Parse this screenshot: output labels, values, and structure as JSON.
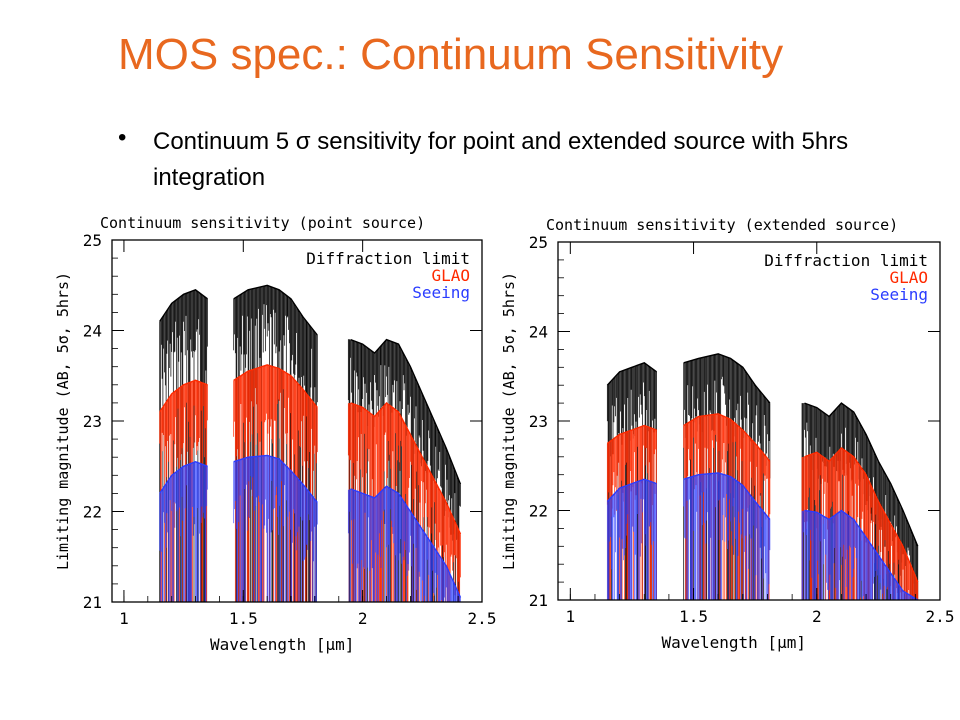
{
  "slide": {
    "title": "MOS spec.: Continuum Sensitivity",
    "bullet": "Continuum 5 σ sensitivity for point and extended source with 5hrs integration",
    "bullet_symbol": "•"
  },
  "colors": {
    "title": "#E8681F",
    "diffraction": "#000000",
    "glao": "#FF2A00",
    "seeing": "#2A3CFF"
  },
  "chart_data": [
    {
      "type": "line",
      "title": "Continuum sensitivity (point source)",
      "xlabel": "Wavelength [μm]",
      "ylabel": "Limiting magnitude (AB, 5σ, 5hrs)",
      "xlim": [
        0.95,
        2.5
      ],
      "ylim": [
        21,
        25
      ],
      "xticks": [
        "1",
        "1.5",
        "2",
        "2.5"
      ],
      "yticks": [
        "21",
        "22",
        "23",
        "24",
        "25"
      ],
      "legend_position": "top-right",
      "bands": [
        [
          1.15,
          1.35
        ],
        [
          1.46,
          1.81
        ],
        [
          1.94,
          2.41
        ]
      ],
      "series": [
        {
          "name": "Diffraction limit",
          "color": "#000000",
          "x": [
            1.15,
            1.2,
            1.25,
            1.3,
            1.35,
            1.46,
            1.52,
            1.6,
            1.65,
            1.7,
            1.75,
            1.81,
            1.95,
            2.0,
            2.05,
            2.1,
            2.15,
            2.2,
            2.25,
            2.3,
            2.35,
            2.41
          ],
          "y": [
            24.1,
            24.3,
            24.4,
            24.45,
            24.35,
            24.35,
            24.45,
            24.5,
            24.45,
            24.35,
            24.15,
            23.95,
            23.9,
            23.85,
            23.75,
            23.9,
            23.85,
            23.6,
            23.3,
            23.0,
            22.7,
            22.3
          ]
        },
        {
          "name": "GLAO",
          "color": "#FF2A00",
          "x": [
            1.15,
            1.2,
            1.25,
            1.3,
            1.35,
            1.46,
            1.52,
            1.6,
            1.65,
            1.7,
            1.75,
            1.81,
            1.95,
            2.0,
            2.05,
            2.1,
            2.15,
            2.2,
            2.25,
            2.3,
            2.35,
            2.41
          ],
          "y": [
            23.1,
            23.3,
            23.4,
            23.45,
            23.4,
            23.45,
            23.55,
            23.62,
            23.58,
            23.5,
            23.35,
            23.15,
            23.2,
            23.15,
            23.05,
            23.2,
            23.1,
            22.85,
            22.6,
            22.35,
            22.1,
            21.75
          ]
        },
        {
          "name": "Seeing",
          "color": "#2A3CFF",
          "x": [
            1.15,
            1.2,
            1.25,
            1.3,
            1.35,
            1.46,
            1.52,
            1.6,
            1.65,
            1.7,
            1.75,
            1.81,
            1.95,
            2.0,
            2.05,
            2.1,
            2.15,
            2.2,
            2.25,
            2.3,
            2.35,
            2.41
          ],
          "y": [
            22.2,
            22.4,
            22.5,
            22.55,
            22.5,
            22.55,
            22.6,
            22.62,
            22.58,
            22.45,
            22.3,
            22.1,
            22.25,
            22.2,
            22.15,
            22.28,
            22.2,
            22.0,
            21.8,
            21.6,
            21.4,
            21.05
          ]
        }
      ]
    },
    {
      "type": "line",
      "title": "Continuum sensitivity (extended source)",
      "xlabel": "Wavelength [μm]",
      "ylabel": "Limiting magnitude (AB, 5σ, 5hrs)",
      "xlim": [
        0.95,
        2.5
      ],
      "ylim": [
        21,
        25
      ],
      "xticks": [
        "1",
        "1.5",
        "2",
        "2.5"
      ],
      "yticks": [
        "21",
        "22",
        "23",
        "24",
        "25"
      ],
      "legend_position": "top-right",
      "bands": [
        [
          1.15,
          1.35
        ],
        [
          1.46,
          1.81
        ],
        [
          1.94,
          2.41
        ]
      ],
      "series": [
        {
          "name": "Diffraction limit",
          "color": "#000000",
          "x": [
            1.15,
            1.2,
            1.25,
            1.3,
            1.35,
            1.46,
            1.52,
            1.6,
            1.65,
            1.7,
            1.75,
            1.81,
            1.95,
            2.0,
            2.05,
            2.1,
            2.15,
            2.2,
            2.25,
            2.3,
            2.35,
            2.41
          ],
          "y": [
            23.4,
            23.55,
            23.6,
            23.65,
            23.55,
            23.65,
            23.7,
            23.75,
            23.7,
            23.6,
            23.4,
            23.2,
            23.2,
            23.15,
            23.05,
            23.2,
            23.1,
            22.85,
            22.55,
            22.3,
            22.0,
            21.6
          ]
        },
        {
          "name": "GLAO",
          "color": "#FF2A00",
          "x": [
            1.15,
            1.2,
            1.25,
            1.3,
            1.35,
            1.46,
            1.52,
            1.6,
            1.65,
            1.7,
            1.75,
            1.81,
            1.95,
            2.0,
            2.05,
            2.1,
            2.15,
            2.2,
            2.25,
            2.3,
            2.35,
            2.41
          ],
          "y": [
            22.75,
            22.85,
            22.9,
            22.95,
            22.9,
            22.95,
            23.05,
            23.08,
            23.02,
            22.9,
            22.75,
            22.55,
            22.6,
            22.65,
            22.55,
            22.7,
            22.6,
            22.4,
            22.1,
            21.85,
            21.6,
            21.2
          ]
        },
        {
          "name": "Seeing",
          "color": "#2A3CFF",
          "x": [
            1.15,
            1.2,
            1.25,
            1.3,
            1.35,
            1.46,
            1.52,
            1.6,
            1.65,
            1.7,
            1.75,
            1.81,
            1.95,
            2.0,
            2.05,
            2.1,
            2.15,
            2.2,
            2.25,
            2.3,
            2.35,
            2.41
          ],
          "y": [
            22.1,
            22.25,
            22.3,
            22.35,
            22.3,
            22.35,
            22.4,
            22.42,
            22.38,
            22.28,
            22.1,
            21.9,
            22.0,
            21.98,
            21.9,
            22.0,
            21.9,
            21.7,
            21.5,
            21.3,
            21.1,
            21.0
          ]
        }
      ]
    }
  ]
}
